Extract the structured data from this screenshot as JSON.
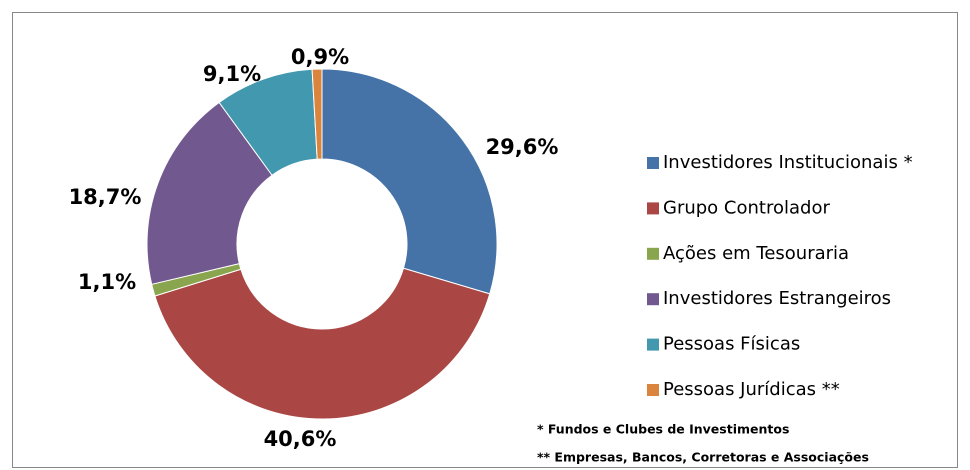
{
  "chart_data": {
    "type": "donut",
    "categories": [
      "Investidores Institucionais *",
      "Grupo Controlador",
      "Ações em Tesouraria",
      "Investidores Estrangeiros",
      "Pessoas Físicas",
      "Pessoas Jurídicas **"
    ],
    "values": [
      29.6,
      40.6,
      1.1,
      18.7,
      9.1,
      0.9
    ],
    "value_labels": [
      "29,6%",
      "40,6%",
      "1,1%",
      "18,7%",
      "9,1%",
      "0,9%"
    ],
    "colors": [
      "#4572a7",
      "#aa4643",
      "#89a54e",
      "#71588f",
      "#4198af",
      "#db843d"
    ],
    "legend": "right",
    "footnotes": [
      "* Fundos e Clubes de Investimentos",
      "** Empresas, Bancos, Corretoras e Associações"
    ]
  }
}
